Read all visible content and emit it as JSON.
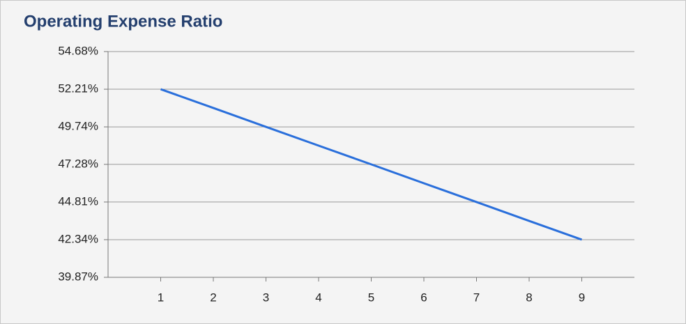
{
  "chart_data": {
    "type": "line",
    "title": "Operating Expense Ratio",
    "x": [
      1,
      2,
      3,
      4,
      5,
      6,
      7,
      8,
      9
    ],
    "values": [
      52.21,
      50.98,
      49.74,
      48.51,
      47.28,
      46.04,
      44.81,
      43.57,
      42.34
    ],
    "color": "#2a6fdb",
    "xlim": [
      0,
      10
    ],
    "xticks": [
      1,
      2,
      3,
      4,
      5,
      6,
      7,
      8,
      9
    ],
    "ylim": [
      39.87,
      54.68
    ],
    "yticks": [
      {
        "value": 39.87,
        "label": "39.87%"
      },
      {
        "value": 42.34,
        "label": "42.34%"
      },
      {
        "value": 44.81,
        "label": "44.81%"
      },
      {
        "value": 47.28,
        "label": "47.28%"
      },
      {
        "value": 49.74,
        "label": "49.74%"
      },
      {
        "value": 52.21,
        "label": "52.21%"
      },
      {
        "value": 54.68,
        "label": "54.68%"
      }
    ],
    "grid": true
  }
}
